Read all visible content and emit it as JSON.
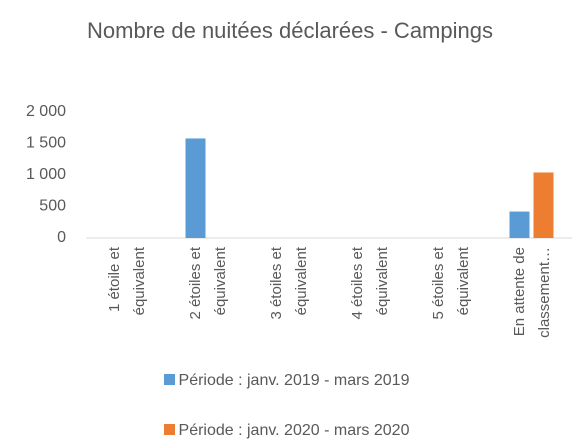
{
  "chart_data": {
    "type": "bar",
    "title": "Nombre de nuitées déclarées - Campings",
    "categories": [
      "1 étoile et équivalent",
      "2 étoiles et équivalent",
      "3 étoiles et équivalent",
      "4 étoiles et équivalent",
      "5 étoiles et équivalent",
      "En attente de classement…"
    ],
    "series": [
      {
        "name": "Période : janv. 2019 - mars 2019",
        "color": "#5b9bd5",
        "values": [
          0,
          1580,
          0,
          0,
          0,
          420
        ]
      },
      {
        "name": "Période : janv. 2020 - mars 2020",
        "color": "#ed7d31",
        "values": [
          0,
          0,
          0,
          0,
          0,
          1040
        ]
      }
    ],
    "ylim": [
      0,
      2000
    ],
    "yticks": [
      0,
      500,
      {
        "value": 1000,
        "label": "1 000"
      },
      {
        "value": 1500,
        "label": "1 500"
      },
      {
        "value": 2000,
        "label": "2 000"
      }
    ],
    "grid": false
  }
}
